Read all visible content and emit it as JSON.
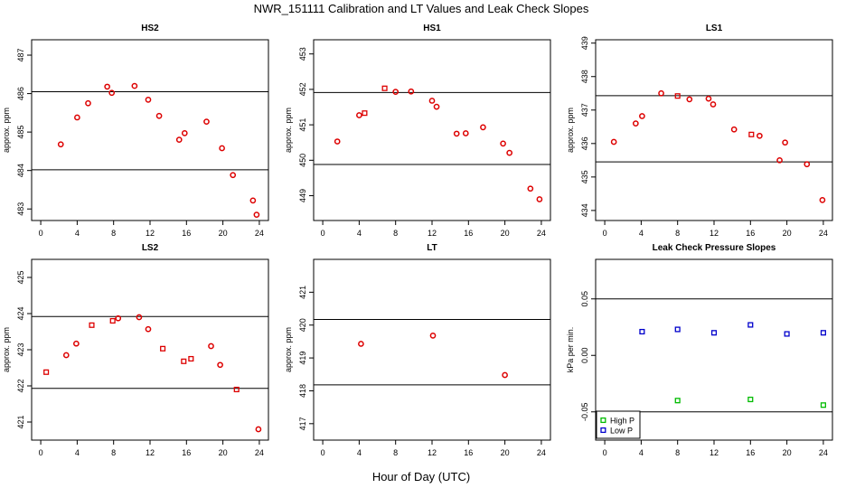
{
  "page_title": "NWR_151111  Calibration and LT Values and Leak Check Slopes",
  "x_axis_label": "Hour of Day (UTC)",
  "colors": {
    "cal": "#dd0000",
    "high_p": "#00bb00",
    "low_p": "#0000cc",
    "line": "#000000"
  },
  "chart_data": [
    {
      "type": "scatter",
      "title": "HS2",
      "ylabel": "approx. ppm",
      "xlim": [
        -1,
        25
      ],
      "xticks": [
        0,
        4,
        8,
        12,
        16,
        20,
        24
      ],
      "ylim": [
        482.7,
        487.4
      ],
      "yticks": [
        483,
        484,
        485,
        486,
        487
      ],
      "hlines": [
        486.05,
        484.02
      ],
      "points": [
        [
          2.2,
          484.68
        ],
        [
          4.0,
          485.38
        ],
        [
          5.2,
          485.75
        ],
        [
          7.3,
          486.18
        ],
        [
          7.8,
          486.02
        ],
        [
          10.3,
          486.2
        ],
        [
          11.8,
          485.84
        ],
        [
          13.0,
          485.42
        ],
        [
          15.2,
          484.8
        ],
        [
          15.8,
          484.97
        ],
        [
          18.2,
          485.27
        ],
        [
          19.9,
          484.58
        ],
        [
          21.1,
          483.88
        ],
        [
          23.3,
          483.22
        ],
        [
          23.7,
          482.85
        ]
      ],
      "marker": [
        "o",
        "o",
        "o",
        "o",
        "o",
        "o",
        "o",
        "o",
        "o",
        "o",
        "o",
        "o",
        "o",
        "o",
        "o"
      ]
    },
    {
      "type": "scatter",
      "title": "HS1",
      "ylabel": "approx. ppm",
      "xlim": [
        -1,
        25
      ],
      "xticks": [
        0,
        4,
        8,
        12,
        16,
        20,
        24
      ],
      "ylim": [
        448.3,
        453.4
      ],
      "yticks": [
        449,
        450,
        451,
        452,
        453
      ],
      "hlines": [
        451.91,
        449.88
      ],
      "points": [
        [
          1.6,
          450.53
        ],
        [
          4.0,
          451.27
        ],
        [
          4.6,
          451.33
        ],
        [
          6.8,
          452.03
        ],
        [
          8.0,
          451.93
        ],
        [
          9.7,
          451.94
        ],
        [
          12.0,
          451.68
        ],
        [
          12.5,
          451.51
        ],
        [
          14.7,
          450.75
        ],
        [
          15.7,
          450.76
        ],
        [
          17.6,
          450.93
        ],
        [
          19.8,
          450.47
        ],
        [
          20.5,
          450.21
        ],
        [
          22.8,
          449.2
        ],
        [
          23.8,
          448.9
        ]
      ],
      "marker": [
        "o",
        "o",
        "s",
        "s",
        "o",
        "o",
        "o",
        "o",
        "o",
        "o",
        "o",
        "o",
        "o",
        "o",
        "o"
      ]
    },
    {
      "type": "scatter",
      "title": "LS1",
      "ylabel": "approx. ppm",
      "xlim": [
        -1,
        25
      ],
      "xticks": [
        0,
        4,
        8,
        12,
        16,
        20,
        24
      ],
      "ylim": [
        433.7,
        439.1
      ],
      "yticks": [
        434,
        435,
        436,
        437,
        438,
        439
      ],
      "hlines": [
        437.43,
        435.45
      ],
      "points": [
        [
          1.0,
          436.05
        ],
        [
          3.4,
          436.6
        ],
        [
          4.1,
          436.82
        ],
        [
          6.2,
          437.5
        ],
        [
          8.0,
          437.42
        ],
        [
          9.3,
          437.32
        ],
        [
          11.4,
          437.34
        ],
        [
          11.9,
          437.17
        ],
        [
          14.2,
          436.42
        ],
        [
          16.1,
          436.27
        ],
        [
          17.0,
          436.23
        ],
        [
          19.2,
          435.5
        ],
        [
          19.8,
          436.03
        ],
        [
          22.2,
          435.38
        ],
        [
          23.9,
          434.31
        ]
      ],
      "marker": [
        "o",
        "o",
        "o",
        "o",
        "s",
        "o",
        "o",
        "o",
        "o",
        "s",
        "o",
        "o",
        "o",
        "o",
        "o"
      ]
    },
    {
      "type": "scatter",
      "title": "LS2",
      "ylabel": "approx. ppm",
      "xlim": [
        -1,
        25
      ],
      "xticks": [
        0,
        4,
        8,
        12,
        16,
        20,
        24
      ],
      "ylim": [
        420.5,
        425.5
      ],
      "yticks": [
        421,
        422,
        423,
        424,
        425
      ],
      "hlines": [
        423.92,
        421.93
      ],
      "points": [
        [
          0.6,
          422.38
        ],
        [
          2.8,
          422.85
        ],
        [
          3.9,
          423.17
        ],
        [
          5.6,
          423.68
        ],
        [
          7.9,
          423.8
        ],
        [
          8.5,
          423.87
        ],
        [
          10.8,
          423.9
        ],
        [
          11.8,
          423.57
        ],
        [
          13.4,
          423.03
        ],
        [
          15.7,
          422.68
        ],
        [
          16.5,
          422.75
        ],
        [
          18.7,
          423.1
        ],
        [
          19.7,
          422.58
        ],
        [
          21.5,
          421.9
        ],
        [
          23.9,
          420.8
        ]
      ],
      "marker": [
        "s",
        "o",
        "o",
        "s",
        "s",
        "o",
        "o",
        "o",
        "s",
        "s",
        "s",
        "o",
        "o",
        "s",
        "o"
      ]
    },
    {
      "type": "scatter",
      "title": "LT",
      "ylabel": "approx. ppm",
      "xlim": [
        -1,
        25
      ],
      "xticks": [
        0,
        4,
        8,
        12,
        16,
        20,
        24
      ],
      "ylim": [
        416.5,
        422.0
      ],
      "yticks": [
        417,
        418,
        419,
        420,
        421
      ],
      "hlines": [
        420.17,
        418.18
      ],
      "points": [
        [
          4.2,
          419.43
        ],
        [
          12.1,
          419.68
        ],
        [
          20.0,
          418.48
        ]
      ],
      "marker": [
        "o",
        "o",
        "o"
      ]
    },
    {
      "type": "scatter",
      "title": "Leak Check Pressure Slopes",
      "ylabel": "kPa per min.",
      "xlim": [
        -1,
        25
      ],
      "xticks": [
        0,
        4,
        8,
        12,
        16,
        20,
        24
      ],
      "ylim": [
        -0.075,
        0.085
      ],
      "yticks": [
        -0.05,
        0.0,
        0.05
      ],
      "ytick_labels": [
        "-0.05",
        "0.00",
        "0.05"
      ],
      "hlines": [
        0.05,
        -0.05
      ],
      "series": [
        {
          "name": "High P",
          "color": "#00bb00",
          "points": [
            [
              8.0,
              -0.04
            ],
            [
              16.0,
              -0.039
            ],
            [
              24.0,
              -0.044
            ]
          ]
        },
        {
          "name": "Low P",
          "color": "#0000cc",
          "points": [
            [
              4.1,
              0.021
            ],
            [
              8.0,
              0.023
            ],
            [
              12.0,
              0.02
            ],
            [
              16.0,
              0.027
            ],
            [
              20.0,
              0.019
            ],
            [
              24.0,
              0.02
            ]
          ]
        }
      ],
      "legend": {
        "placement": "bottom-left",
        "entries": [
          "High P",
          "Low P"
        ]
      }
    }
  ]
}
